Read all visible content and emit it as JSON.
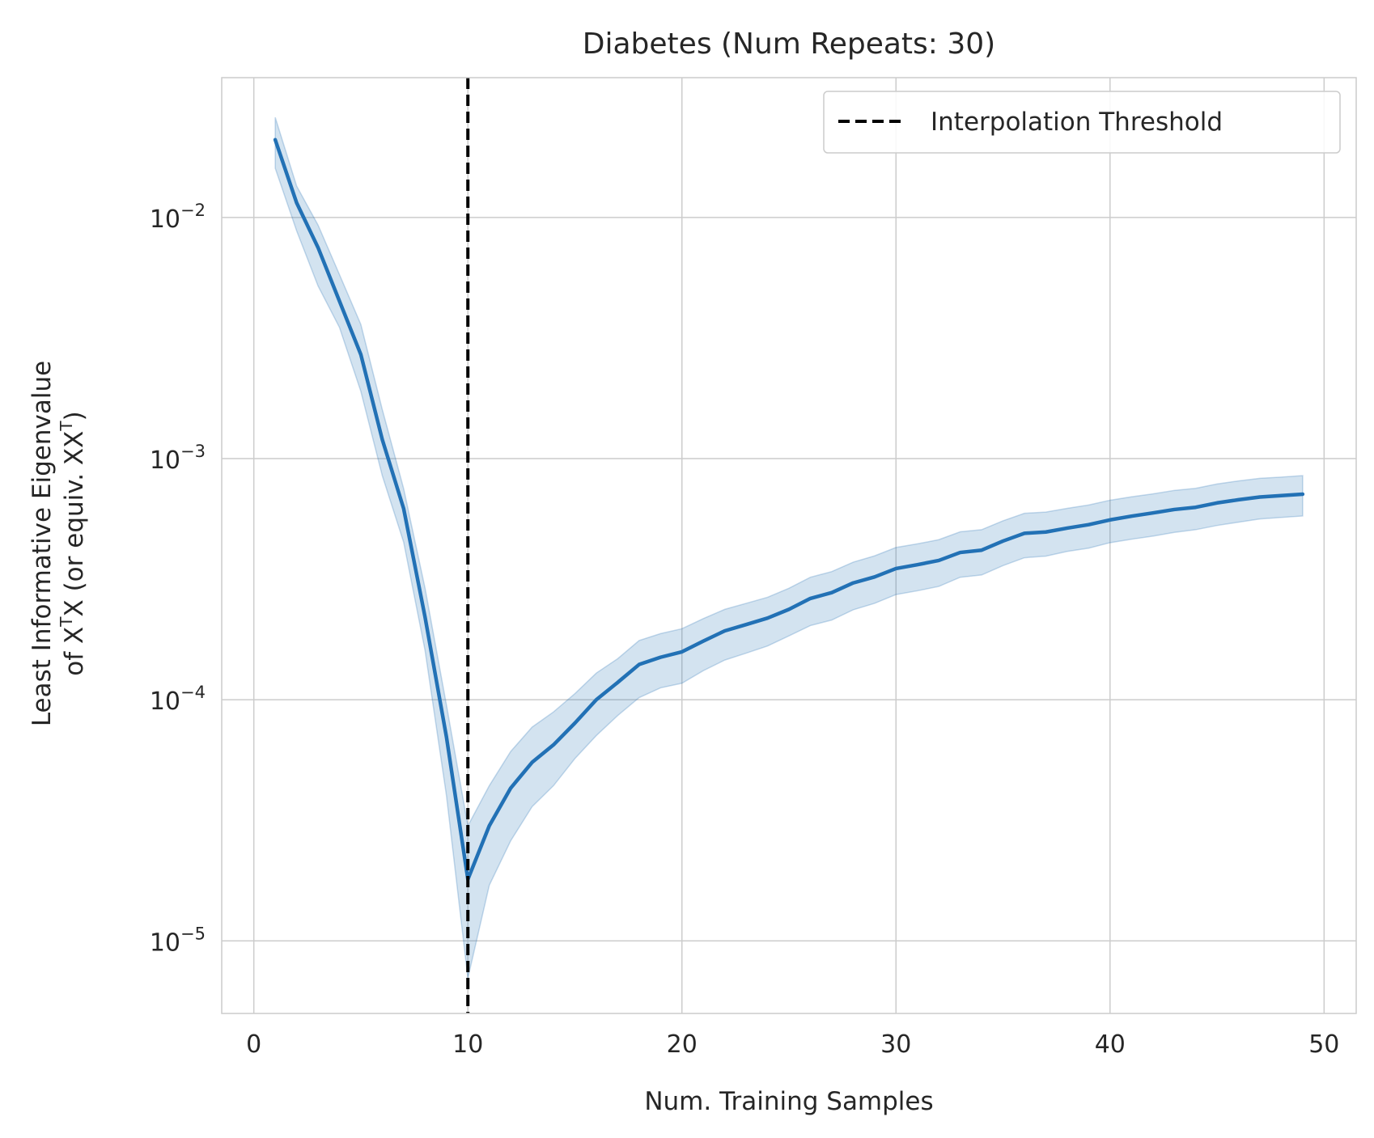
{
  "chart_data": {
    "type": "line",
    "title": "Diabetes (Num Repeats: 30)",
    "xlabel": "Num. Training Samples",
    "ylabel_line1": "Least Informative Eigenvalue",
    "ylabel_line2_prefix": "of X",
    "ylabel_line2_mid": "X (or equiv. XX",
    "ylabel_line2_suffix": ")",
    "ylabel_sup": "T",
    "xlim": [
      -1.5,
      51.5
    ],
    "ylim": [
      5e-06,
      0.038
    ],
    "yscale": "log",
    "grid": true,
    "legend_position": "top-right",
    "xticks": [
      0,
      10,
      20,
      30,
      40,
      50
    ],
    "xtick_labels": [
      "0",
      "10",
      "20",
      "30",
      "40",
      "50"
    ],
    "yticks": [
      1e-05,
      0.0001,
      0.001,
      0.01
    ],
    "ytick_base": "10",
    "ytick_exponents": [
      "−5",
      "−4",
      "−3",
      "−2"
    ],
    "threshold": {
      "x": 10,
      "label": "Interpolation Threshold",
      "color": "#000000"
    },
    "series": [
      {
        "color": "#2271b5",
        "band_color": "#2271b5",
        "x": [
          1,
          2,
          3,
          4,
          5,
          6,
          7,
          8,
          9,
          10,
          11,
          12,
          13,
          14,
          15,
          16,
          17,
          18,
          19,
          20,
          21,
          22,
          23,
          24,
          25,
          26,
          27,
          28,
          29,
          30,
          31,
          32,
          33,
          34,
          35,
          36,
          37,
          38,
          39,
          40,
          41,
          42,
          43,
          44,
          45,
          46,
          47,
          48,
          49
        ],
        "y": [
          0.021,
          0.0115,
          0.0075,
          0.0045,
          0.0027,
          0.0012,
          0.00062,
          0.00022,
          7e-05,
          1.8e-05,
          3e-05,
          4.3e-05,
          5.5e-05,
          6.5e-05,
          8e-05,
          0.0001,
          0.000118,
          0.00014,
          0.00015,
          0.000158,
          0.000175,
          0.000193,
          0.000205,
          0.000218,
          0.000237,
          0.000263,
          0.000278,
          0.000305,
          0.000323,
          0.00035,
          0.000363,
          0.000378,
          0.000408,
          0.000417,
          0.000455,
          0.00049,
          0.000496,
          0.000515,
          0.000532,
          0.000557,
          0.000577,
          0.000595,
          0.000615,
          0.000628,
          0.000655,
          0.000675,
          0.000693,
          0.000702,
          0.000712
        ],
        "lower": [
          0.016,
          0.0088,
          0.0052,
          0.0035,
          0.0019,
          0.00085,
          0.00045,
          0.00016,
          4e-05,
          7e-06,
          1.7e-05,
          2.6e-05,
          3.6e-05,
          4.4e-05,
          5.7e-05,
          7.1e-05,
          8.6e-05,
          0.000102,
          0.000112,
          0.000117,
          0.000132,
          0.000146,
          0.000156,
          0.000167,
          0.000184,
          0.000203,
          0.000214,
          0.000236,
          0.000251,
          0.000273,
          0.000283,
          0.000295,
          0.000322,
          0.000329,
          0.00036,
          0.000388,
          0.000394,
          0.000412,
          0.000425,
          0.000448,
          0.000463,
          0.000477,
          0.000494,
          0.000507,
          0.000528,
          0.000545,
          0.000562,
          0.00057,
          0.000578
        ],
        "upper": [
          0.026,
          0.0135,
          0.0093,
          0.0058,
          0.0036,
          0.0016,
          0.00075,
          0.00029,
          9.5e-05,
          3e-05,
          4.4e-05,
          6.1e-05,
          7.7e-05,
          8.9e-05,
          0.000106,
          0.000129,
          0.000148,
          0.000176,
          0.000188,
          0.000197,
          0.000217,
          0.000237,
          0.000251,
          0.000266,
          0.00029,
          0.000322,
          0.00034,
          0.000372,
          0.000395,
          0.000428,
          0.000443,
          0.000461,
          0.000497,
          0.000507,
          0.000552,
          0.000593,
          0.0006,
          0.000622,
          0.000642,
          0.000672,
          0.000694,
          0.000714,
          0.000738,
          0.000753,
          0.000785,
          0.000808,
          0.000828,
          0.000838,
          0.00085
        ]
      }
    ]
  }
}
